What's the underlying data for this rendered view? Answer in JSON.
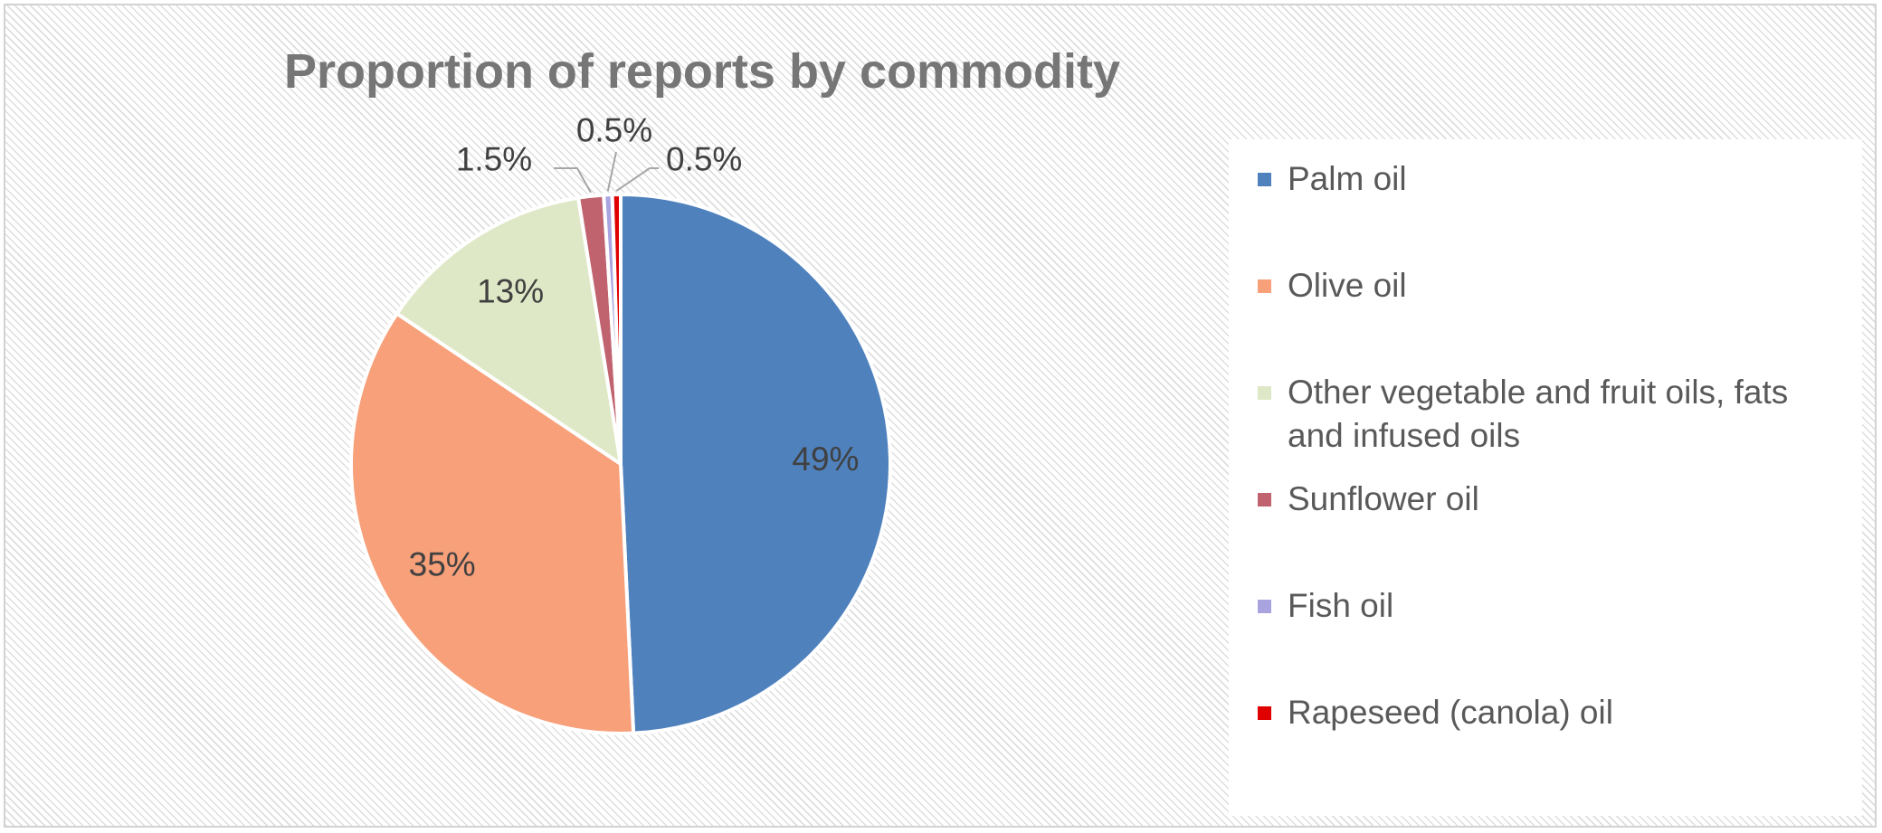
{
  "chart_data": {
    "type": "pie",
    "title": "Proportion of reports by commodity",
    "slices": [
      {
        "name": "Palm oil",
        "value": 49,
        "label": "49%",
        "color": "#4f81bd"
      },
      {
        "name": "Olive oil",
        "value": 35,
        "label": "35%",
        "color": "#f7a07a"
      },
      {
        "name": "Other vegetable and fruit oils, fats and infused oils",
        "value": 13,
        "label": "13%",
        "color": "#dfe8c6"
      },
      {
        "name": "Sunflower oil",
        "value": 1.5,
        "label": "1.5%",
        "color": "#c0636f"
      },
      {
        "name": "Fish oil",
        "value": 0.5,
        "label": "0.5%",
        "color": "#a9a4e0"
      },
      {
        "name": "Rapeseed (canola) oil",
        "value": 0.5,
        "label": "0.5%",
        "color": "#e00000"
      }
    ],
    "legend_position": "right"
  }
}
